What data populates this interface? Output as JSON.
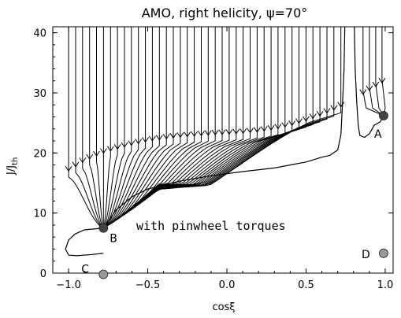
{
  "chart_data": {
    "type": "line",
    "title": "AMO, right helicity, ψ=70°",
    "xlabel": "cosξ",
    "ylabel": "J/J",
    "ylabel_sub": "th",
    "xlim": [
      -1.1,
      1.05
    ],
    "ylim": [
      0,
      41
    ],
    "xticks": [
      -1.0,
      -0.5,
      0.0,
      0.5,
      1.0
    ],
    "xtick_labels": [
      "−1.0",
      "−0.5",
      "0.0",
      "0.5",
      "1.0"
    ],
    "yticks": [
      0,
      10,
      20,
      30,
      40
    ],
    "ytick_labels": [
      "0",
      "10",
      "20",
      "30",
      "40"
    ],
    "annotation": "with pinwheel torques",
    "arrow_arc": [
      [
        -1.0,
        17.0
      ],
      [
        -0.9,
        18.6
      ],
      [
        -0.8,
        19.8
      ],
      [
        -0.7,
        20.6
      ],
      [
        -0.6,
        21.3
      ],
      [
        -0.5,
        21.9
      ],
      [
        -0.4,
        22.3
      ],
      [
        -0.3,
        22.6
      ],
      [
        -0.2,
        22.8
      ],
      [
        -0.1,
        23.0
      ],
      [
        0.0,
        23.1
      ],
      [
        0.1,
        23.25
      ],
      [
        0.2,
        23.5
      ],
      [
        0.3,
        23.9
      ],
      [
        0.4,
        24.5
      ],
      [
        0.5,
        25.3
      ],
      [
        0.6,
        26.3
      ],
      [
        0.7,
        27.4
      ],
      [
        0.8,
        28.8
      ],
      [
        0.9,
        30.4
      ],
      [
        1.0,
        32.0
      ]
    ],
    "special_curves": {
      "left_hook": [
        [
          -0.78,
          7.5
        ],
        [
          -0.82,
          7.4
        ],
        [
          -0.9,
          7.2
        ],
        [
          -0.96,
          6.5
        ],
        [
          -1.0,
          5.5
        ],
        [
          -1.02,
          4.0
        ],
        [
          -1.0,
          3.0
        ],
        [
          -0.95,
          2.9
        ],
        [
          -0.85,
          3.1
        ],
        [
          -0.78,
          3.3
        ]
      ],
      "right_branch": [
        [
          -0.78,
          7.5
        ],
        [
          -0.7,
          10.5
        ],
        [
          -0.6,
          12.7
        ],
        [
          -0.5,
          14.0
        ],
        [
          -0.3,
          15.3
        ],
        [
          -0.1,
          16.2
        ],
        [
          0.1,
          16.9
        ],
        [
          0.3,
          17.5
        ],
        [
          0.5,
          18.5
        ],
        [
          0.6,
          19.3
        ],
        [
          0.65,
          19.6
        ],
        [
          0.7,
          20.5
        ],
        [
          0.72,
          23.0
        ],
        [
          0.73,
          28.0
        ],
        [
          0.74,
          34.0
        ],
        [
          0.745,
          41.0
        ]
      ],
      "a_well": [
        [
          0.99,
          26.2
        ],
        [
          0.97,
          25.2
        ],
        [
          0.93,
          24.6
        ],
        [
          0.9,
          23.2
        ],
        [
          0.87,
          22.6
        ],
        [
          0.84,
          22.9
        ],
        [
          0.83,
          24.5
        ],
        [
          0.82,
          28.5
        ],
        [
          0.81,
          34.0
        ],
        [
          0.805,
          41.0
        ]
      ]
    },
    "points": [
      {
        "label": "A",
        "x": 0.99,
        "y": 26.2,
        "color": "#444444"
      },
      {
        "label": "B",
        "x": -0.78,
        "y": 7.5,
        "color": "#444444"
      },
      {
        "label": "C",
        "x": -0.78,
        "y": -0.2,
        "color": "#999999"
      },
      {
        "label": "D",
        "x": 0.99,
        "y": 3.3,
        "color": "#999999"
      }
    ]
  }
}
